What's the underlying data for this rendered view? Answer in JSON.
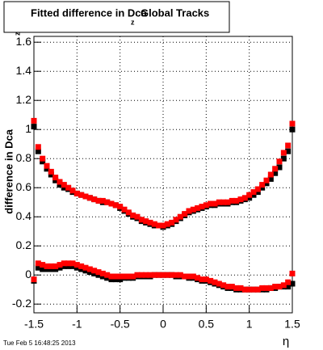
{
  "chart_data": {
    "type": "scatter",
    "title": "Fitted difference in Dca",
    "title_subscript": "z",
    "title_suffix": "Global Tracks",
    "y_label": "difference in Dca",
    "y_label_subscript": "z",
    "x_label": "η",
    "footer": "Tue Feb  5 16:48:25 2013",
    "xlim": [
      -1.5,
      1.5
    ],
    "ylim": [
      -0.26,
      1.64
    ],
    "xticks": [
      -1.5,
      -1,
      -0.5,
      0,
      0.5,
      1,
      1.5
    ],
    "yticks": [
      -0.2,
      0,
      0.2,
      0.4,
      0.6,
      0.8,
      1,
      1.2,
      1.4,
      1.6
    ],
    "grid": true,
    "x": [
      -1.5,
      -1.45,
      -1.4,
      -1.35,
      -1.3,
      -1.25,
      -1.2,
      -1.15,
      -1.1,
      -1.05,
      -1,
      -0.95,
      -0.9,
      -0.85,
      -0.8,
      -0.75,
      -0.7,
      -0.65,
      -0.6,
      -0.55,
      -0.5,
      -0.45,
      -0.4,
      -0.35,
      -0.3,
      -0.25,
      -0.2,
      -0.15,
      -0.1,
      -0.05,
      0,
      0.05,
      0.1,
      0.15,
      0.2,
      0.25,
      0.3,
      0.35,
      0.4,
      0.45,
      0.5,
      0.55,
      0.6,
      0.65,
      0.7,
      0.75,
      0.8,
      0.85,
      0.9,
      0.95,
      1,
      1.05,
      1.1,
      1.15,
      1.2,
      1.25,
      1.3,
      1.35,
      1.4,
      1.45,
      1.5
    ],
    "series": [
      {
        "color": "#000000",
        "values": [
          1.02,
          0.85,
          0.78,
          0.73,
          0.69,
          0.65,
          0.62,
          0.6,
          0.59,
          0.57,
          0.56,
          0.55,
          0.54,
          0.53,
          0.52,
          0.51,
          0.5,
          0.5,
          0.49,
          0.48,
          0.46,
          0.44,
          0.42,
          0.4,
          0.39,
          0.37,
          0.36,
          0.35,
          0.34,
          0.34,
          0.33,
          0.34,
          0.35,
          0.37,
          0.39,
          0.41,
          0.43,
          0.44,
          0.45,
          0.46,
          0.47,
          0.48,
          0.48,
          0.49,
          0.49,
          0.49,
          0.5,
          0.5,
          0.51,
          0.52,
          0.53,
          0.55,
          0.57,
          0.6,
          0.63,
          0.66,
          0.7,
          0.74,
          0.8,
          0.85,
          1.0
        ]
      },
      {
        "color": "#ff0000",
        "values": [
          1.06,
          0.88,
          0.8,
          0.75,
          0.71,
          0.67,
          0.64,
          0.62,
          0.6,
          0.58,
          0.56,
          0.55,
          0.54,
          0.53,
          0.52,
          0.51,
          0.51,
          0.5,
          0.49,
          0.48,
          0.47,
          0.45,
          0.43,
          0.41,
          0.4,
          0.38,
          0.37,
          0.36,
          0.35,
          0.34,
          0.34,
          0.35,
          0.36,
          0.38,
          0.4,
          0.42,
          0.44,
          0.45,
          0.46,
          0.47,
          0.48,
          0.49,
          0.49,
          0.5,
          0.5,
          0.5,
          0.51,
          0.51,
          0.52,
          0.53,
          0.55,
          0.57,
          0.59,
          0.62,
          0.65,
          0.69,
          0.73,
          0.78,
          0.84,
          0.89,
          1.04
        ]
      },
      {
        "color": "#000000",
        "values": [
          -0.04,
          0.05,
          0.04,
          0.04,
          0.04,
          0.04,
          0.05,
          0.06,
          0.06,
          0.06,
          0.05,
          0.04,
          0.03,
          0.02,
          0.01,
          0,
          -0.01,
          -0.02,
          -0.03,
          -0.03,
          -0.03,
          -0.02,
          -0.02,
          -0.02,
          -0.01,
          -0.01,
          -0.01,
          -0.01,
          0,
          0,
          0,
          0,
          0,
          -0.01,
          -0.01,
          -0.01,
          -0.02,
          -0.02,
          -0.03,
          -0.04,
          -0.04,
          -0.05,
          -0.06,
          -0.07,
          -0.08,
          -0.09,
          -0.09,
          -0.1,
          -0.1,
          -0.1,
          -0.1,
          -0.1,
          -0.1,
          -0.1,
          -0.1,
          -0.09,
          -0.09,
          -0.08,
          -0.08,
          -0.08,
          -0.06
        ]
      },
      {
        "color": "#ff0000",
        "values": [
          -0.03,
          0.08,
          0.07,
          0.06,
          0.06,
          0.06,
          0.07,
          0.08,
          0.08,
          0.08,
          0.07,
          0.06,
          0.05,
          0.04,
          0.03,
          0.02,
          0.01,
          0,
          -0.01,
          -0.01,
          -0.01,
          -0.01,
          -0.01,
          -0.01,
          0,
          0,
          0,
          0,
          0,
          0,
          0,
          0,
          0,
          0,
          0,
          -0.01,
          -0.01,
          -0.01,
          -0.02,
          -0.03,
          -0.03,
          -0.04,
          -0.05,
          -0.06,
          -0.07,
          -0.08,
          -0.08,
          -0.09,
          -0.09,
          -0.1,
          -0.1,
          -0.1,
          -0.1,
          -0.09,
          -0.09,
          -0.09,
          -0.08,
          -0.08,
          -0.07,
          -0.05,
          0.01
        ]
      }
    ]
  }
}
